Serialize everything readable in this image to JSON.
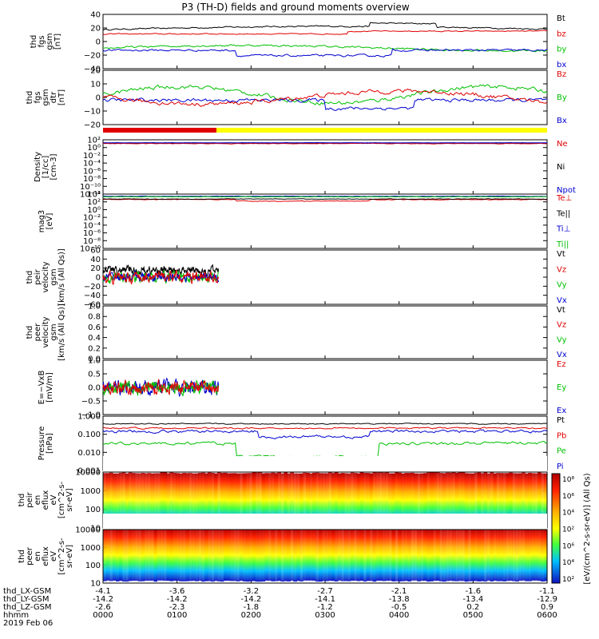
{
  "title": "P3 (TH-D) fields and ground moments overview",
  "chart_data": {
    "type": "line",
    "x": {
      "ticks": [
        "0000",
        "0100",
        "0200",
        "0300",
        "0400",
        "0500",
        "0600"
      ],
      "label": "hhmm",
      "date": "2019 Feb 06"
    },
    "orbit_rows": [
      {
        "label": "thd_LX-GSM",
        "values": [
          "-4.1",
          "-3.6",
          "-3.2",
          "-2.7",
          "-2.1",
          "-1.6",
          "-1.1"
        ]
      },
      {
        "label": "thd_LY-GSM",
        "values": [
          "-14.2",
          "-14.2",
          "-14.2",
          "-14.1",
          "-13.8",
          "-13.4",
          "-12.9"
        ]
      },
      {
        "label": "thd_LZ-GSM",
        "values": [
          "-2.6",
          "-2.3",
          "-1.8",
          "-1.2",
          "-0.5",
          "0.2",
          "0.9"
        ]
      }
    ],
    "panels": [
      {
        "id": "fgs_gsm",
        "ylabel": [
          "thd",
          "fgs",
          "gsm",
          "[nT]"
        ],
        "ylim": [
          -40,
          40
        ],
        "ticks": [
          "40",
          "20",
          "0",
          "−20",
          "−40"
        ],
        "legend": [
          {
            "name": "Bt",
            "color": "#000000"
          },
          {
            "name": "bz",
            "color": "#e00000"
          },
          {
            "name": "by",
            "color": "#00c000"
          },
          {
            "name": "bx",
            "color": "#0000d0"
          }
        ]
      },
      {
        "id": "fgs_gsm_dtr",
        "ylabel": [
          "thd",
          "fgs",
          "gsm",
          "dtr",
          "[nT]"
        ],
        "ylim": [
          -25,
          20
        ],
        "ticks": [
          "20",
          "10",
          "0",
          "−10",
          "−20"
        ],
        "legend": [
          {
            "name": "Bz",
            "color": "#e00000"
          },
          {
            "name": "By",
            "color": "#00c000"
          },
          {
            "name": "Bx",
            "color": "#0000d0"
          }
        ]
      },
      {
        "id": "density",
        "ylabel": [
          "Density",
          "[1/cc]",
          "[cm-3]"
        ],
        "ylog": true,
        "ticks": [
          "10²",
          "10⁰",
          "10⁻²",
          "10⁻⁴",
          "10⁻⁶",
          "10⁻⁸",
          "10⁻¹⁰",
          "10⁻¹²"
        ],
        "legend": [
          {
            "name": "Ne",
            "color": "#e00000"
          },
          {
            "name": "Ni",
            "color": "#000000"
          },
          {
            "name": "Npot",
            "color": "#0000d0"
          }
        ]
      },
      {
        "id": "temp",
        "ylabel": [
          "mag3",
          "[eV]"
        ],
        "ylog": true,
        "ticks": [
          "10⁴",
          "10²",
          "10⁰",
          "10⁻²",
          "10⁻⁴",
          "10⁻⁶",
          "10⁻⁸",
          "10⁻¹⁰"
        ],
        "legend": [
          {
            "name": "Te⊥",
            "color": "#e00000"
          },
          {
            "name": "Te||",
            "color": "#000000"
          },
          {
            "name": "Ti⊥",
            "color": "#0000d0"
          },
          {
            "name": "Ti||",
            "color": "#00c000"
          }
        ]
      },
      {
        "id": "peir_velocity",
        "ylabel": [
          "thd",
          "peir",
          "velocity",
          "gsm",
          "[km/s (All Qs)]"
        ],
        "ylim": [
          -60,
          60
        ],
        "ticks": [
          "60",
          "40",
          "20",
          "0",
          "−20",
          "−40",
          "−60"
        ],
        "legend": [
          {
            "name": "Vt",
            "color": "#000000"
          },
          {
            "name": "Vz",
            "color": "#e00000"
          },
          {
            "name": "Vy",
            "color": "#00c000"
          },
          {
            "name": "Vx",
            "color": "#0000d0"
          }
        ]
      },
      {
        "id": "peer_velocity",
        "ylabel": [
          "thd",
          "peer",
          "velocity",
          "gsm",
          "[km/s (All Qs)]"
        ],
        "ylim": [
          0,
          1
        ],
        "ticks": [
          "1.0",
          "0.8",
          "0.6",
          "0.4",
          "0.2",
          "0.0"
        ],
        "legend": [
          {
            "name": "Vt",
            "color": "#000000"
          },
          {
            "name": "Vz",
            "color": "#e00000"
          },
          {
            "name": "Vy",
            "color": "#00c000"
          },
          {
            "name": "Vx",
            "color": "#0000d0"
          }
        ]
      },
      {
        "id": "efield",
        "ylabel": [
          "E=−VxB",
          "[mV/m]"
        ],
        "ylim": [
          -1,
          1
        ],
        "ticks": [
          "1.0",
          "0.5",
          "0.0",
          "−0.5",
          "−1.0"
        ],
        "legend": [
          {
            "name": "Ez",
            "color": "#e00000"
          },
          {
            "name": "Ey",
            "color": "#00c000"
          },
          {
            "name": "Ex",
            "color": "#0000d0"
          }
        ]
      },
      {
        "id": "pressure",
        "ylabel": [
          "Pressure",
          "[nPa]"
        ],
        "ylog": true,
        "ticks": [
          "1.000",
          "0.100",
          "0.010",
          "0.001"
        ],
        "legend": [
          {
            "name": "Pt",
            "color": "#000000"
          },
          {
            "name": "Pb",
            "color": "#e00000"
          },
          {
            "name": "Pe",
            "color": "#00c000"
          },
          {
            "name": "Pi",
            "color": "#0000d0"
          }
        ]
      },
      {
        "id": "peir_spec",
        "ylabel": [
          "thd",
          "peir",
          "en",
          "eflux",
          "eV",
          "[cm^2-s-",
          "sr-eV]"
        ],
        "ticks": [
          "10000",
          "1000",
          "100",
          "10"
        ]
      },
      {
        "id": "peer_spec",
        "ylabel": [
          "thd",
          "peer",
          "en",
          "eflux",
          "eV",
          "[cm^2-s-",
          "sr-eV]"
        ],
        "ticks": [
          "10000",
          "1000",
          "100",
          "10"
        ]
      }
    ],
    "colorbar": {
      "label": "[eV/(cm^2-s-sr-eV)] (All Qs)",
      "ticks": [
        "10⁸",
        "10⁶",
        "10⁴",
        "10²",
        "10⁶",
        "10⁴",
        "10²"
      ]
    }
  }
}
